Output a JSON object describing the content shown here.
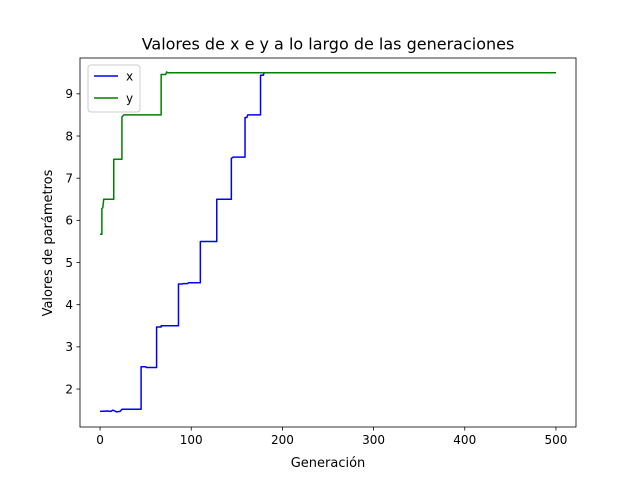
{
  "chart_data": {
    "type": "line",
    "title": "Valores de x e y a lo largo de las generaciones",
    "xlabel": "Generación",
    "ylabel": "Valores de parámetros",
    "xlim": [
      -22,
      522
    ],
    "ylim": [
      1.1,
      9.85
    ],
    "xticks": [
      0,
      100,
      200,
      300,
      400,
      500
    ],
    "yticks": [
      2,
      3,
      4,
      5,
      6,
      7,
      8,
      9
    ],
    "grid": false,
    "legend_position": "top-left",
    "series": [
      {
        "name": "x",
        "color": "#0000ff",
        "points": [
          [
            0,
            1.47
          ],
          [
            8,
            1.48
          ],
          [
            12,
            1.47
          ],
          [
            14,
            1.5
          ],
          [
            16,
            1.48
          ],
          [
            18,
            1.46
          ],
          [
            22,
            1.47
          ],
          [
            24,
            1.52
          ],
          [
            45,
            1.52
          ],
          [
            45,
            2.53
          ],
          [
            50,
            2.53
          ],
          [
            51,
            2.51
          ],
          [
            62,
            2.51
          ],
          [
            62,
            3.47
          ],
          [
            67,
            3.47
          ],
          [
            67,
            3.5
          ],
          [
            86,
            3.5
          ],
          [
            86,
            4.49
          ],
          [
            90,
            4.49
          ],
          [
            91,
            4.5
          ],
          [
            96,
            4.5
          ],
          [
            97,
            4.52
          ],
          [
            110,
            4.52
          ],
          [
            110,
            5.5
          ],
          [
            128,
            5.5
          ],
          [
            128,
            6.5
          ],
          [
            144,
            6.5
          ],
          [
            144,
            7.47
          ],
          [
            146,
            7.5
          ],
          [
            159,
            7.5
          ],
          [
            159,
            8.44
          ],
          [
            161,
            8.44
          ],
          [
            162,
            8.5
          ],
          [
            176,
            8.5
          ],
          [
            176,
            9.44
          ],
          [
            179,
            9.44
          ],
          [
            180,
            9.5
          ],
          [
            500,
            9.5
          ]
        ]
      },
      {
        "name": "y",
        "color": "#008000",
        "points": [
          [
            0,
            5.67
          ],
          [
            2,
            5.67
          ],
          [
            2,
            6.28
          ],
          [
            3,
            6.3
          ],
          [
            4,
            6.5
          ],
          [
            15,
            6.5
          ],
          [
            15,
            7.45
          ],
          [
            24,
            7.45
          ],
          [
            24,
            8.45
          ],
          [
            26,
            8.5
          ],
          [
            67,
            8.5
          ],
          [
            67,
            9.46
          ],
          [
            72,
            9.46
          ],
          [
            73,
            9.52
          ],
          [
            74,
            9.5
          ],
          [
            500,
            9.5
          ]
        ]
      }
    ]
  }
}
